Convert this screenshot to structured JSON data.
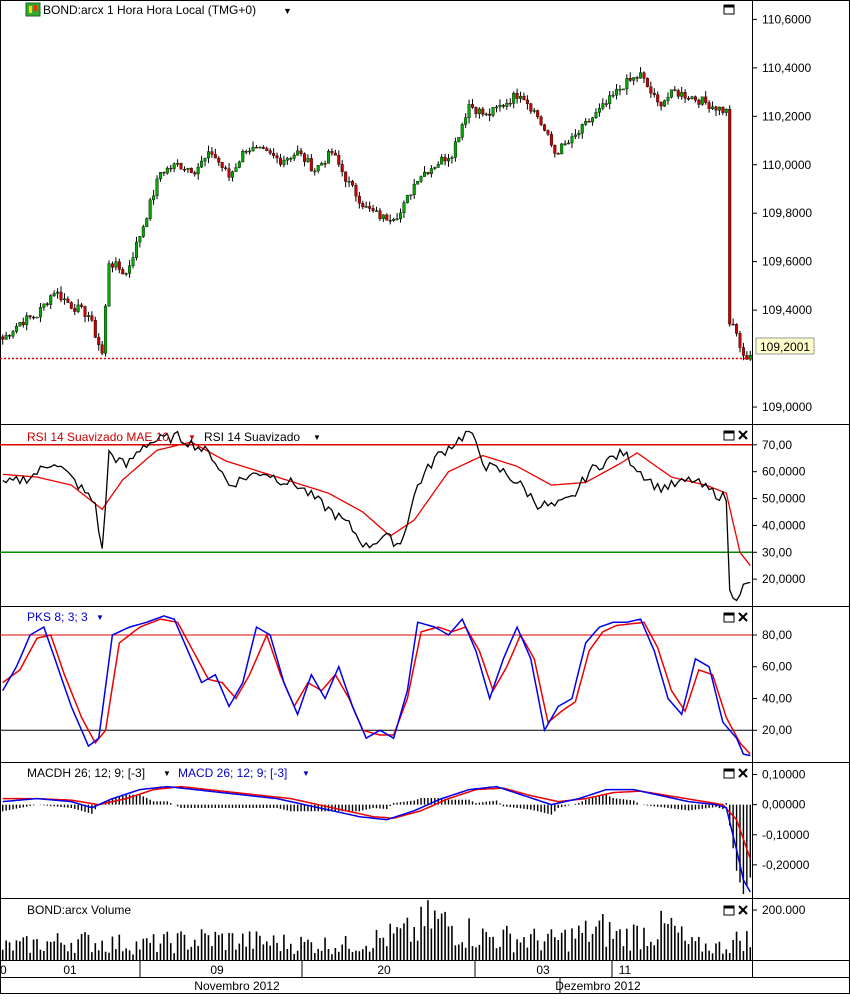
{
  "colors": {
    "up_candle": "#00aa00",
    "down_candle": "#cc0000",
    "rsi_main": "#000000",
    "rsi_avg": "#ee0000",
    "pks_k": "#0000ee",
    "pks_d": "#ee0000",
    "macd": "#0000ee",
    "signal": "#ee0000",
    "upper_band": "#dd0000",
    "lower_band": "#008800",
    "current_price_line": "#ee0000",
    "price_tag_bg": "#ffffcc"
  },
  "price_panel": {
    "title": "BOND:arcx 1 Hora Hora Local (TMG+0)",
    "logo_icon": "candlestick-logo-icon",
    "menu_icon": "chevron-down-icon",
    "y_ticks": [
      "110,6000",
      "110,4000",
      "110,2000",
      "110,0000",
      "109,8000",
      "109,6000",
      "109,4000",
      "109,0000"
    ],
    "y_tick_values": [
      110.6,
      110.4,
      110.2,
      110.0,
      109.8,
      109.6,
      109.4,
      109.0
    ],
    "last_price_label": "109,2001",
    "last_price": 109.2001
  },
  "rsi_panel": {
    "title_avg": "RSI 14 Suavizado MAE 10",
    "title_main": "RSI 14 Suavizado",
    "y_ticks": [
      "70,00",
      "60,0000",
      "50,0000",
      "40,0000",
      "30,00",
      "20,0000"
    ],
    "y_tick_values": [
      70,
      60,
      50,
      40,
      30,
      20
    ],
    "upper": 70,
    "lower": 30
  },
  "pks_panel": {
    "title": "PKS 8; 3; 3",
    "y_ticks": [
      "80,00",
      "60,00",
      "40,00",
      "20,00"
    ],
    "y_tick_values": [
      80,
      60,
      40,
      20
    ],
    "upper": 80,
    "lower": 20
  },
  "macd_panel": {
    "title_hist": "MACDH 26; 12; 9; [-3]",
    "title_macd": "MACD 26; 12; 9; [-3]",
    "y_ticks": [
      "0,10000",
      "0,00000",
      "-0,10000",
      "-0,20000"
    ],
    "y_tick_values": [
      0.1,
      0,
      -0.1,
      -0.2
    ]
  },
  "volume_panel": {
    "title": "BOND:arcx Volume",
    "y_ticks": [
      "200.000"
    ],
    "y_tick_values": [
      200000
    ]
  },
  "x_axis": {
    "day_labels": [
      "01",
      "09",
      "20",
      "03",
      "11"
    ],
    "month_labels": [
      "Novembro 2012",
      "Dezembro 2012"
    ],
    "edge_label": "0"
  },
  "controls": {
    "maximize_icon": "maximize-icon",
    "close_icon": "close-icon"
  },
  "chart_data": {
    "type": "candlestick",
    "title": "BOND:arcx 1 Hora Hora Local (TMG+0)",
    "ylim": [
      108.93,
      110.68
    ],
    "close_anchors": [
      [
        0,
        109.28
      ],
      [
        5,
        109.35
      ],
      [
        10,
        109.38
      ],
      [
        15,
        109.48
      ],
      [
        20,
        109.42
      ],
      [
        25,
        109.38
      ],
      [
        29,
        109.22
      ],
      [
        31,
        109.6
      ],
      [
        36,
        109.55
      ],
      [
        41,
        109.75
      ],
      [
        46,
        109.97
      ],
      [
        51,
        110.0
      ],
      [
        56,
        109.98
      ],
      [
        61,
        110.05
      ],
      [
        66,
        109.95
      ],
      [
        71,
        110.07
      ],
      [
        76,
        110.05
      ],
      [
        81,
        110.02
      ],
      [
        86,
        110.05
      ],
      [
        91,
        109.98
      ],
      [
        96,
        110.05
      ],
      [
        101,
        109.92
      ],
      [
        106,
        109.82
      ],
      [
        111,
        109.78
      ],
      [
        116,
        109.8
      ],
      [
        121,
        109.95
      ],
      [
        126,
        110.0
      ],
      [
        131,
        110.05
      ],
      [
        136,
        110.25
      ],
      [
        141,
        110.2
      ],
      [
        146,
        110.25
      ],
      [
        151,
        110.3
      ],
      [
        156,
        110.2
      ],
      [
        161,
        110.05
      ],
      [
        166,
        110.1
      ],
      [
        171,
        110.18
      ],
      [
        176,
        110.25
      ],
      [
        181,
        110.33
      ],
      [
        186,
        110.37
      ],
      [
        191,
        110.25
      ],
      [
        196,
        110.3
      ],
      [
        201,
        110.28
      ],
      [
        206,
        110.25
      ],
      [
        211,
        110.22
      ],
      [
        212,
        109.35
      ],
      [
        214,
        109.3
      ],
      [
        216,
        109.2
      ],
      [
        218,
        109.22
      ]
    ],
    "rsi_anchors": [
      [
        0,
        55
      ],
      [
        8,
        58
      ],
      [
        15,
        64
      ],
      [
        22,
        55
      ],
      [
        27,
        48
      ],
      [
        29,
        30
      ],
      [
        31,
        67
      ],
      [
        36,
        62
      ],
      [
        41,
        70
      ],
      [
        46,
        72
      ],
      [
        51,
        73
      ],
      [
        56,
        70
      ],
      [
        61,
        66
      ],
      [
        66,
        55
      ],
      [
        71,
        58
      ],
      [
        76,
        60
      ],
      [
        81,
        57
      ],
      [
        86,
        55
      ],
      [
        91,
        50
      ],
      [
        96,
        45
      ],
      [
        101,
        40
      ],
      [
        106,
        32
      ],
      [
        111,
        36
      ],
      [
        116,
        33
      ],
      [
        121,
        55
      ],
      [
        126,
        65
      ],
      [
        131,
        70
      ],
      [
        136,
        75
      ],
      [
        141,
        62
      ],
      [
        146,
        60
      ],
      [
        151,
        55
      ],
      [
        156,
        48
      ],
      [
        161,
        47
      ],
      [
        166,
        50
      ],
      [
        171,
        60
      ],
      [
        176,
        64
      ],
      [
        181,
        67
      ],
      [
        186,
        60
      ],
      [
        191,
        54
      ],
      [
        196,
        55
      ],
      [
        201,
        57
      ],
      [
        206,
        53
      ],
      [
        211,
        50
      ],
      [
        212,
        15
      ],
      [
        214,
        14
      ],
      [
        216,
        17
      ],
      [
        218,
        18
      ]
    ],
    "rsi_avg_anchors": [
      [
        0,
        59
      ],
      [
        10,
        58
      ],
      [
        20,
        55
      ],
      [
        29,
        46
      ],
      [
        35,
        57
      ],
      [
        45,
        68
      ],
      [
        55,
        71
      ],
      [
        65,
        64
      ],
      [
        75,
        60
      ],
      [
        85,
        56
      ],
      [
        95,
        52
      ],
      [
        105,
        45
      ],
      [
        113,
        36
      ],
      [
        120,
        42
      ],
      [
        130,
        60
      ],
      [
        140,
        66
      ],
      [
        150,
        62
      ],
      [
        160,
        55
      ],
      [
        170,
        56
      ],
      [
        180,
        63
      ],
      [
        185,
        67
      ],
      [
        195,
        58
      ],
      [
        205,
        55
      ],
      [
        211,
        52
      ],
      [
        215,
        30
      ],
      [
        218,
        25
      ]
    ],
    "pks_anchors": [
      [
        0,
        45
      ],
      [
        4,
        60
      ],
      [
        8,
        80
      ],
      [
        12,
        85
      ],
      [
        16,
        60
      ],
      [
        20,
        35
      ],
      [
        25,
        10
      ],
      [
        28,
        15
      ],
      [
        32,
        80
      ],
      [
        37,
        85
      ],
      [
        42,
        88
      ],
      [
        47,
        92
      ],
      [
        50,
        90
      ],
      [
        54,
        70
      ],
      [
        58,
        50
      ],
      [
        62,
        55
      ],
      [
        66,
        35
      ],
      [
        70,
        50
      ],
      [
        74,
        85
      ],
      [
        78,
        80
      ],
      [
        82,
        50
      ],
      [
        86,
        30
      ],
      [
        90,
        55
      ],
      [
        94,
        40
      ],
      [
        98,
        60
      ],
      [
        102,
        35
      ],
      [
        106,
        15
      ],
      [
        110,
        20
      ],
      [
        114,
        15
      ],
      [
        118,
        45
      ],
      [
        121,
        88
      ],
      [
        126,
        85
      ],
      [
        130,
        80
      ],
      [
        134,
        90
      ],
      [
        138,
        70
      ],
      [
        142,
        40
      ],
      [
        146,
        65
      ],
      [
        150,
        85
      ],
      [
        154,
        65
      ],
      [
        158,
        20
      ],
      [
        162,
        35
      ],
      [
        166,
        40
      ],
      [
        170,
        75
      ],
      [
        174,
        85
      ],
      [
        178,
        88
      ],
      [
        182,
        88
      ],
      [
        186,
        90
      ],
      [
        190,
        70
      ],
      [
        194,
        40
      ],
      [
        198,
        30
      ],
      [
        202,
        65
      ],
      [
        206,
        60
      ],
      [
        210,
        25
      ],
      [
        214,
        15
      ],
      [
        216,
        5
      ],
      [
        218,
        4
      ]
    ],
    "pks_d_anchors": [
      [
        0,
        50
      ],
      [
        5,
        58
      ],
      [
        10,
        78
      ],
      [
        14,
        80
      ],
      [
        18,
        55
      ],
      [
        23,
        28
      ],
      [
        27,
        12
      ],
      [
        30,
        20
      ],
      [
        34,
        75
      ],
      [
        40,
        85
      ],
      [
        46,
        90
      ],
      [
        51,
        88
      ],
      [
        56,
        68
      ],
      [
        60,
        52
      ],
      [
        64,
        50
      ],
      [
        68,
        40
      ],
      [
        72,
        55
      ],
      [
        77,
        80
      ],
      [
        81,
        55
      ],
      [
        85,
        35
      ],
      [
        89,
        50
      ],
      [
        93,
        45
      ],
      [
        97,
        55
      ],
      [
        101,
        40
      ],
      [
        105,
        20
      ],
      [
        110,
        17
      ],
      [
        114,
        17
      ],
      [
        118,
        40
      ],
      [
        122,
        82
      ],
      [
        127,
        85
      ],
      [
        131,
        82
      ],
      [
        135,
        85
      ],
      [
        139,
        70
      ],
      [
        143,
        45
      ],
      [
        147,
        60
      ],
      [
        151,
        80
      ],
      [
        155,
        65
      ],
      [
        159,
        25
      ],
      [
        163,
        32
      ],
      [
        167,
        38
      ],
      [
        171,
        70
      ],
      [
        175,
        82
      ],
      [
        179,
        86
      ],
      [
        183,
        87
      ],
      [
        187,
        88
      ],
      [
        191,
        72
      ],
      [
        195,
        45
      ],
      [
        199,
        32
      ],
      [
        203,
        58
      ],
      [
        207,
        55
      ],
      [
        211,
        28
      ],
      [
        215,
        12
      ],
      [
        218,
        5
      ]
    ],
    "macd_anchors": [
      [
        0,
        0.01
      ],
      [
        10,
        0.02
      ],
      [
        20,
        0.01
      ],
      [
        26,
        -0.01
      ],
      [
        32,
        0.02
      ],
      [
        40,
        0.05
      ],
      [
        48,
        0.06
      ],
      [
        56,
        0.05
      ],
      [
        64,
        0.04
      ],
      [
        72,
        0.03
      ],
      [
        80,
        0.02
      ],
      [
        88,
        0.0
      ],
      [
        96,
        -0.02
      ],
      [
        104,
        -0.04
      ],
      [
        112,
        -0.05
      ],
      [
        120,
        -0.02
      ],
      [
        128,
        0.02
      ],
      [
        136,
        0.05
      ],
      [
        144,
        0.06
      ],
      [
        152,
        0.03
      ],
      [
        160,
        0.0
      ],
      [
        168,
        0.02
      ],
      [
        176,
        0.05
      ],
      [
        184,
        0.05
      ],
      [
        192,
        0.03
      ],
      [
        200,
        0.01
      ],
      [
        208,
        0.0
      ],
      [
        211,
        -0.01
      ],
      [
        214,
        -0.15
      ],
      [
        216,
        -0.25
      ],
      [
        218,
        -0.29
      ]
    ],
    "signal_anchors": [
      [
        0,
        0.02
      ],
      [
        10,
        0.02
      ],
      [
        20,
        0.015
      ],
      [
        28,
        0.0
      ],
      [
        36,
        0.02
      ],
      [
        44,
        0.05
      ],
      [
        52,
        0.06
      ],
      [
        60,
        0.05
      ],
      [
        68,
        0.04
      ],
      [
        76,
        0.03
      ],
      [
        84,
        0.02
      ],
      [
        92,
        0.0
      ],
      [
        100,
        -0.02
      ],
      [
        108,
        -0.04
      ],
      [
        114,
        -0.045
      ],
      [
        122,
        -0.02
      ],
      [
        130,
        0.02
      ],
      [
        138,
        0.05
      ],
      [
        146,
        0.055
      ],
      [
        154,
        0.03
      ],
      [
        162,
        0.01
      ],
      [
        170,
        0.02
      ],
      [
        178,
        0.04
      ],
      [
        186,
        0.045
      ],
      [
        194,
        0.03
      ],
      [
        202,
        0.015
      ],
      [
        210,
        0.0
      ],
      [
        214,
        -0.05
      ],
      [
        218,
        -0.18
      ]
    ],
    "volume_anchors": [
      [
        0,
        60000
      ],
      [
        20,
        90000
      ],
      [
        40,
        70000
      ],
      [
        60,
        100000
      ],
      [
        80,
        80000
      ],
      [
        100,
        70000
      ],
      [
        120,
        130000
      ],
      [
        125,
        190000
      ],
      [
        140,
        110000
      ],
      [
        160,
        90000
      ],
      [
        175,
        140000
      ],
      [
        180,
        110000
      ],
      [
        195,
        150000
      ],
      [
        200,
        70000
      ],
      [
        210,
        60000
      ],
      [
        214,
        90000
      ],
      [
        216,
        110000
      ],
      [
        218,
        80000
      ]
    ]
  }
}
